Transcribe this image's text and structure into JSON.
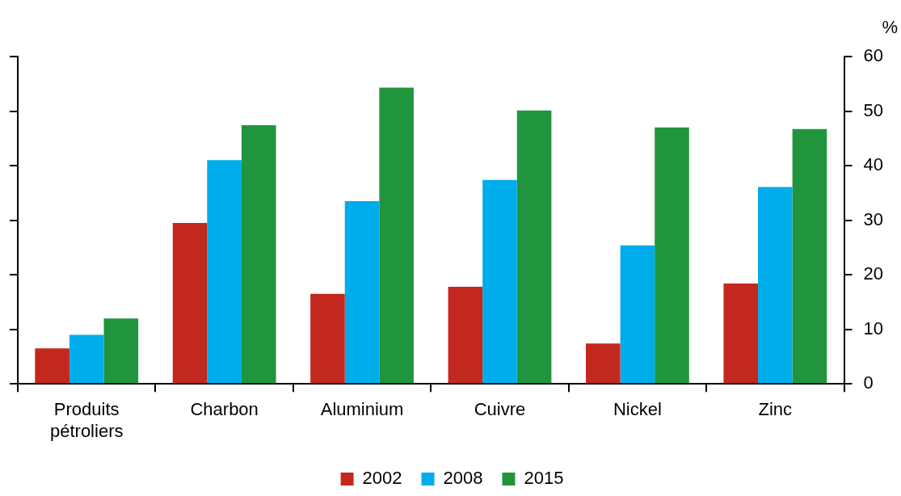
{
  "chart_data": {
    "type": "bar",
    "ylabel": "%",
    "categories": [
      "Produits pétroliers",
      "Charbon",
      "Aluminium",
      "Cuivre",
      "Nickel",
      "Zinc"
    ],
    "series": [
      {
        "name": "2002",
        "color": "#c3281f",
        "values": [
          6.5,
          29.5,
          16.5,
          17.8,
          7.4,
          18.4
        ]
      },
      {
        "name": "2008",
        "color": "#00adeb",
        "values": [
          9.0,
          41.0,
          33.5,
          37.4,
          25.4,
          36.1
        ]
      },
      {
        "name": "2015",
        "color": "#21953d",
        "values": [
          12.0,
          47.4,
          54.3,
          50.1,
          47.0,
          46.7
        ]
      }
    ],
    "ylim": [
      0,
      60
    ],
    "yticks": [
      0,
      10,
      20,
      30,
      40,
      50,
      60
    ],
    "grid": false,
    "legend": "bottom"
  }
}
